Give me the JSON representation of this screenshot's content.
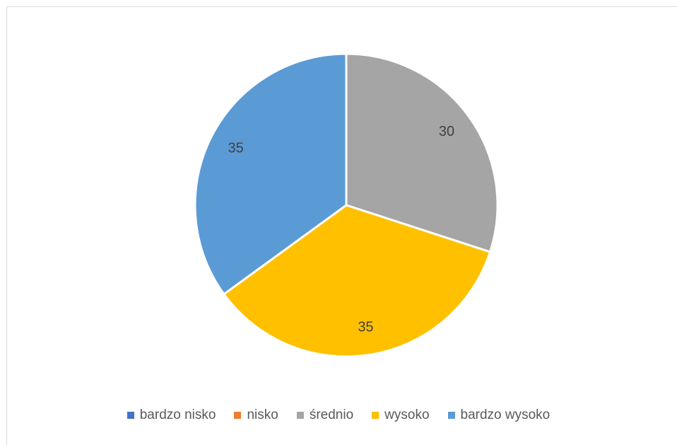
{
  "chart_data": {
    "type": "pie",
    "categories": [
      "bardzo nisko",
      "nisko",
      "średnio",
      "wysoko",
      "bardzo wysoko"
    ],
    "values": [
      0,
      0,
      30,
      35,
      35
    ],
    "colors": [
      "#4472C4",
      "#ED7D31",
      "#A5A5A5",
      "#FFC000",
      "#5B9BD5"
    ],
    "data_labels": [
      "",
      "",
      "30",
      "35",
      "35"
    ],
    "legend_position": "bottom",
    "start_angle": "top, clockwise"
  }
}
